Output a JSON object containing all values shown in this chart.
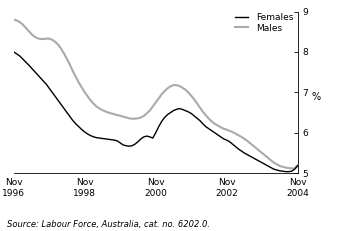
{
  "title": "",
  "ylabel": "%",
  "ylim": [
    5,
    9
  ],
  "yticks": [
    5,
    6,
    7,
    8,
    9
  ],
  "source_text": "Source: Labour Force, Australia, cat. no. 6202.0.",
  "legend_entries": [
    "Females",
    "Males"
  ],
  "female_color": "#000000",
  "male_color": "#aaaaaa",
  "female_linewidth": 1.0,
  "male_linewidth": 1.5,
  "x_tick_labels": [
    "Nov\n1996",
    "Nov\n1998",
    "Nov\n2000",
    "Nov\n2002",
    "Nov\n2004"
  ],
  "x_tick_positions": [
    0,
    24,
    48,
    72,
    96
  ],
  "females": [
    8.0,
    7.95,
    7.9,
    7.83,
    7.75,
    7.68,
    7.6,
    7.52,
    7.44,
    7.36,
    7.28,
    7.2,
    7.1,
    7.0,
    6.9,
    6.8,
    6.7,
    6.6,
    6.5,
    6.4,
    6.3,
    6.22,
    6.15,
    6.08,
    6.02,
    5.97,
    5.93,
    5.9,
    5.88,
    5.87,
    5.86,
    5.85,
    5.84,
    5.83,
    5.82,
    5.8,
    5.75,
    5.7,
    5.68,
    5.67,
    5.68,
    5.72,
    5.78,
    5.85,
    5.9,
    5.92,
    5.9,
    5.87,
    6.0,
    6.15,
    6.28,
    6.38,
    6.45,
    6.5,
    6.55,
    6.58,
    6.6,
    6.58,
    6.55,
    6.52,
    6.48,
    6.42,
    6.36,
    6.3,
    6.22,
    6.15,
    6.1,
    6.05,
    6.0,
    5.95,
    5.9,
    5.85,
    5.82,
    5.78,
    5.72,
    5.66,
    5.6,
    5.55,
    5.5,
    5.46,
    5.42,
    5.38,
    5.34,
    5.3,
    5.26,
    5.22,
    5.18,
    5.14,
    5.1,
    5.08,
    5.06,
    5.05,
    5.04,
    5.04,
    5.05,
    5.1,
    5.18
  ],
  "males": [
    8.8,
    8.78,
    8.74,
    8.68,
    8.6,
    8.52,
    8.44,
    8.38,
    8.34,
    8.32,
    8.32,
    8.33,
    8.33,
    8.3,
    8.25,
    8.18,
    8.08,
    7.96,
    7.82,
    7.68,
    7.52,
    7.38,
    7.24,
    7.12,
    7.0,
    6.9,
    6.8,
    6.72,
    6.65,
    6.6,
    6.56,
    6.53,
    6.5,
    6.48,
    6.46,
    6.44,
    6.42,
    6.4,
    6.38,
    6.36,
    6.35,
    6.35,
    6.36,
    6.38,
    6.42,
    6.48,
    6.55,
    6.65,
    6.75,
    6.85,
    6.95,
    7.03,
    7.1,
    7.15,
    7.18,
    7.18,
    7.16,
    7.12,
    7.07,
    7.0,
    6.92,
    6.83,
    6.73,
    6.62,
    6.52,
    6.43,
    6.35,
    6.28,
    6.22,
    6.18,
    6.14,
    6.1,
    6.08,
    6.05,
    6.02,
    5.98,
    5.94,
    5.9,
    5.85,
    5.8,
    5.74,
    5.68,
    5.62,
    5.56,
    5.5,
    5.44,
    5.38,
    5.32,
    5.26,
    5.22,
    5.18,
    5.16,
    5.14,
    5.13,
    5.12,
    5.12,
    5.2
  ]
}
